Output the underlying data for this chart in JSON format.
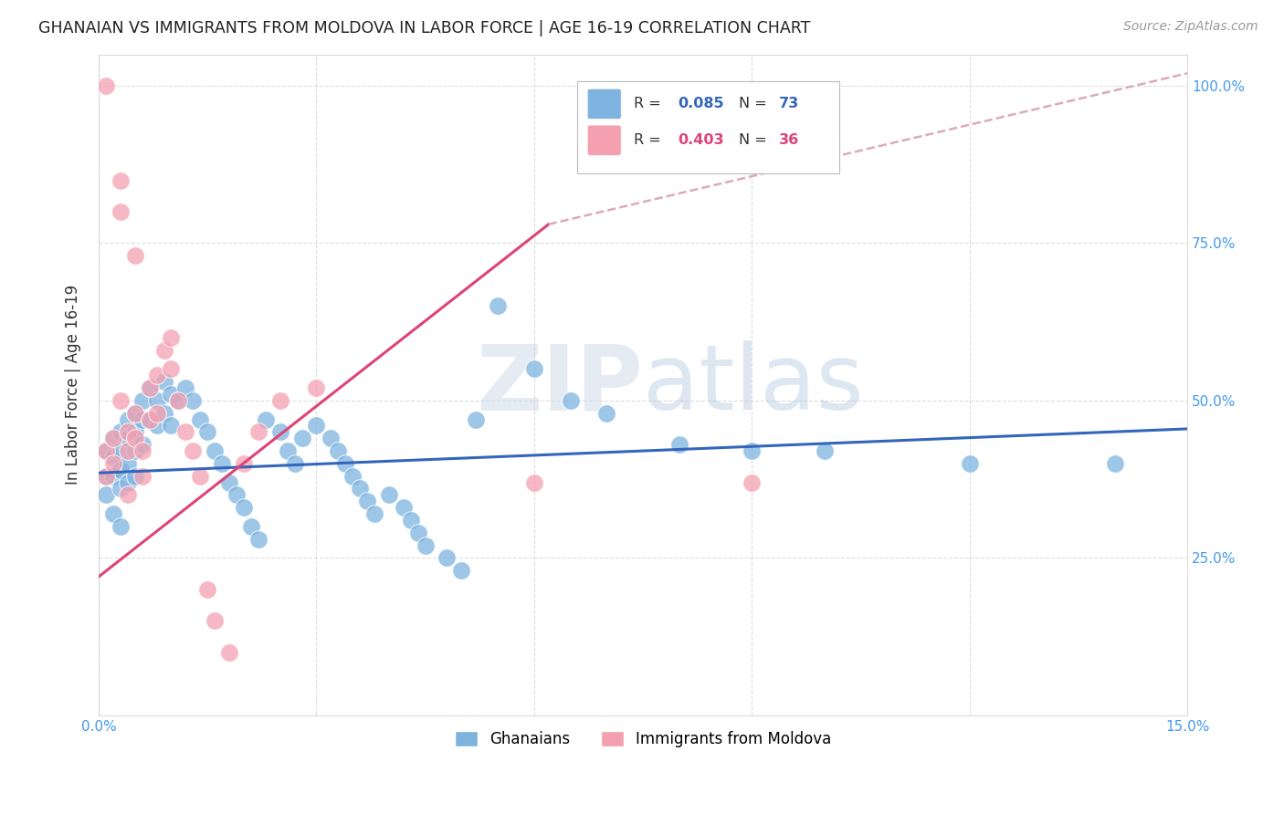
{
  "title": "GHANAIAN VS IMMIGRANTS FROM MOLDOVA IN LABOR FORCE | AGE 16-19 CORRELATION CHART",
  "source": "Source: ZipAtlas.com",
  "ylabel": "In Labor Force | Age 16-19",
  "xlim": [
    0.0,
    0.15
  ],
  "ylim": [
    0.0,
    1.05
  ],
  "xticks": [
    0.0,
    0.03,
    0.06,
    0.09,
    0.12,
    0.15
  ],
  "yticks": [
    0.0,
    0.25,
    0.5,
    0.75,
    1.0
  ],
  "xtick_labels": [
    "0.0%",
    "",
    "",
    "",
    "",
    "15.0%"
  ],
  "ytick_labels_right": [
    "",
    "25.0%",
    "50.0%",
    "75.0%",
    "100.0%"
  ],
  "background_color": "#ffffff",
  "grid_color": "#dddddd",
  "blue_color": "#7eb3e0",
  "pink_color": "#f4a0b0",
  "blue_line_color": "#3366bb",
  "pink_line_color": "#dd4477",
  "dashed_line_color": "#ddaabb",
  "legend_label_blue": "Ghanaians",
  "legend_label_pink": "Immigrants from Moldova",
  "blue_scatter_x": [
    0.001,
    0.001,
    0.001,
    0.002,
    0.002,
    0.002,
    0.002,
    0.003,
    0.003,
    0.003,
    0.003,
    0.003,
    0.004,
    0.004,
    0.004,
    0.004,
    0.005,
    0.005,
    0.005,
    0.005,
    0.006,
    0.006,
    0.006,
    0.007,
    0.007,
    0.008,
    0.008,
    0.009,
    0.009,
    0.01,
    0.01,
    0.011,
    0.012,
    0.013,
    0.014,
    0.015,
    0.016,
    0.017,
    0.018,
    0.019,
    0.02,
    0.021,
    0.022,
    0.023,
    0.025,
    0.026,
    0.027,
    0.028,
    0.03,
    0.032,
    0.033,
    0.034,
    0.035,
    0.036,
    0.037,
    0.038,
    0.04,
    0.042,
    0.043,
    0.044,
    0.045,
    0.048,
    0.05,
    0.052,
    0.055,
    0.06,
    0.065,
    0.07,
    0.08,
    0.09,
    0.1,
    0.12,
    0.14
  ],
  "blue_scatter_y": [
    0.42,
    0.38,
    0.35,
    0.44,
    0.41,
    0.38,
    0.32,
    0.45,
    0.42,
    0.39,
    0.36,
    0.3,
    0.47,
    0.44,
    0.4,
    0.37,
    0.48,
    0.45,
    0.42,
    0.38,
    0.5,
    0.47,
    0.43,
    0.52,
    0.47,
    0.5,
    0.46,
    0.53,
    0.48,
    0.51,
    0.46,
    0.5,
    0.52,
    0.5,
    0.47,
    0.45,
    0.42,
    0.4,
    0.37,
    0.35,
    0.33,
    0.3,
    0.28,
    0.47,
    0.45,
    0.42,
    0.4,
    0.44,
    0.46,
    0.44,
    0.42,
    0.4,
    0.38,
    0.36,
    0.34,
    0.32,
    0.35,
    0.33,
    0.31,
    0.29,
    0.27,
    0.25,
    0.23,
    0.47,
    0.65,
    0.55,
    0.5,
    0.48,
    0.43,
    0.42,
    0.42,
    0.4,
    0.4
  ],
  "pink_scatter_x": [
    0.001,
    0.001,
    0.002,
    0.002,
    0.003,
    0.003,
    0.004,
    0.004,
    0.004,
    0.005,
    0.005,
    0.005,
    0.006,
    0.006,
    0.007,
    0.007,
    0.008,
    0.008,
    0.009,
    0.01,
    0.01,
    0.011,
    0.012,
    0.013,
    0.014,
    0.015,
    0.016,
    0.018,
    0.02,
    0.022,
    0.025,
    0.03,
    0.06,
    0.09,
    0.001,
    0.003
  ],
  "pink_scatter_y": [
    0.42,
    0.38,
    0.44,
    0.4,
    0.85,
    0.5,
    0.45,
    0.42,
    0.35,
    0.73,
    0.48,
    0.44,
    0.42,
    0.38,
    0.52,
    0.47,
    0.54,
    0.48,
    0.58,
    0.6,
    0.55,
    0.5,
    0.45,
    0.42,
    0.38,
    0.2,
    0.15,
    0.1,
    0.4,
    0.45,
    0.5,
    0.52,
    0.37,
    0.37,
    1.0,
    0.8
  ],
  "blue_line_x": [
    0.0,
    0.15
  ],
  "blue_line_y": [
    0.385,
    0.455
  ],
  "pink_line_x": [
    0.0,
    0.062
  ],
  "pink_line_y": [
    0.22,
    0.78
  ],
  "dashed_line_x": [
    0.062,
    0.15
  ],
  "dashed_line_y": [
    0.78,
    1.02
  ]
}
